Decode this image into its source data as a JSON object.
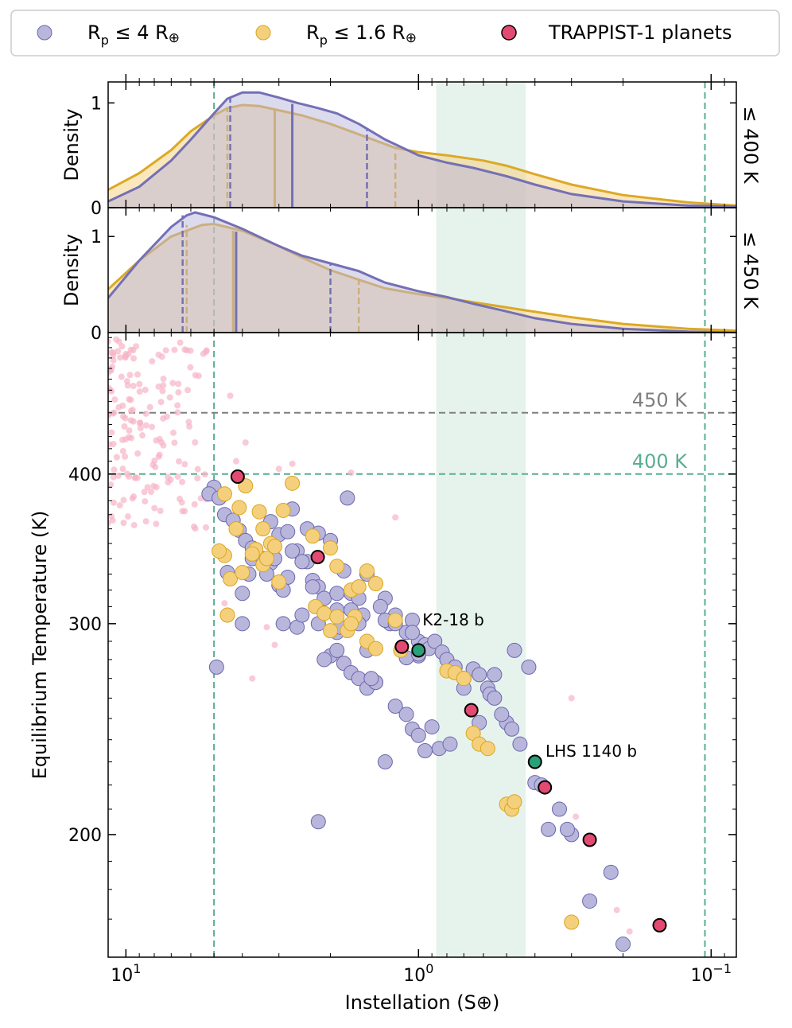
{
  "colors": {
    "small": "#b9b6dc",
    "small_edge": "#6c67ad",
    "small_line": "#7470b4",
    "rocky": "#f5d07c",
    "rocky_edge": "#d9a520",
    "rocky_line": "#dca926",
    "trappist": "#e34a72",
    "green": "#28a07a",
    "field": "#f7b4c6",
    "hz": "#5aae90",
    "gray450": "#7f7f7f",
    "band": "#e6f3ed"
  },
  "legend": {
    "small": {
      "label_main": "R",
      "label_sub": "p",
      "label_rest": " ≤ 4 R",
      "label_oplus": "⊕"
    },
    "rocky": {
      "label_main": "R",
      "label_sub": "p",
      "label_rest": " ≤ 1.6 R",
      "label_oplus": "⊕"
    },
    "trappist": {
      "label": "TRAPPIST-1 planets"
    }
  },
  "chart_data": {
    "type": "scatter",
    "x_scale": "log",
    "x_reversed": true,
    "xlim": [
      11.5,
      0.082
    ],
    "y_scale": "log",
    "ylim": [
      158,
      525
    ],
    "xlabel": "Instellation (S⊕)",
    "ylabel": "Equilibrium Temperature (K)",
    "xticks": [
      {
        "v": 10,
        "label_base": "10",
        "label_exp": "1"
      },
      {
        "v": 1,
        "label_base": "10",
        "label_exp": "0"
      },
      {
        "v": 0.1,
        "label_base": "10",
        "label_exp": "−1"
      }
    ],
    "yticks": [
      {
        "v": 200,
        "label": "200"
      },
      {
        "v": 300,
        "label": "300"
      },
      {
        "v": 400,
        "label": "400"
      }
    ],
    "hz_outer_lines_S": [
      5.0,
      0.105
    ],
    "hz_band_S": [
      0.87,
      0.43
    ],
    "temp_lines": [
      {
        "T": 400,
        "label": "400 K",
        "color": "#5aae90"
      },
      {
        "T": 450,
        "label": "450 K",
        "color": "#7f7f7f"
      }
    ],
    "annotations": [
      {
        "label": "K2-18 b"
      },
      {
        "label": "LHS 1140 b"
      }
    ],
    "density_panels": [
      {
        "label": "≤ 400 K",
        "ylabel": "Density",
        "ylim": [
          0,
          1.2
        ],
        "yticks": [
          0,
          1
        ],
        "small_density": [
          [
            11.5,
            0.06
          ],
          [
            9,
            0.2
          ],
          [
            7,
            0.45
          ],
          [
            6,
            0.65
          ],
          [
            5,
            0.9
          ],
          [
            4.5,
            1.04
          ],
          [
            4,
            1.1
          ],
          [
            3.5,
            1.1
          ],
          [
            3,
            1.05
          ],
          [
            2.6,
            1.0
          ],
          [
            2.2,
            0.95
          ],
          [
            1.9,
            0.9
          ],
          [
            1.6,
            0.8
          ],
          [
            1.3,
            0.65
          ],
          [
            1.0,
            0.5
          ],
          [
            0.8,
            0.43
          ],
          [
            0.65,
            0.38
          ],
          [
            0.5,
            0.3
          ],
          [
            0.4,
            0.22
          ],
          [
            0.3,
            0.13
          ],
          [
            0.2,
            0.06
          ],
          [
            0.12,
            0.02
          ],
          [
            0.082,
            0.01
          ]
        ],
        "small_markers": [
          {
            "S": 4.4,
            "d": 1.06,
            "kind": "q16"
          },
          {
            "S": 2.7,
            "d": 0.99,
            "kind": "median"
          },
          {
            "S": 1.5,
            "d": 0.74,
            "kind": "q84"
          }
        ],
        "rocky_density": [
          [
            11.5,
            0.17
          ],
          [
            9,
            0.33
          ],
          [
            7,
            0.55
          ],
          [
            6,
            0.73
          ],
          [
            5,
            0.88
          ],
          [
            4.5,
            0.95
          ],
          [
            4,
            0.98
          ],
          [
            3.5,
            0.97
          ],
          [
            3,
            0.93
          ],
          [
            2.5,
            0.88
          ],
          [
            2.0,
            0.8
          ],
          [
            1.6,
            0.7
          ],
          [
            1.2,
            0.57
          ],
          [
            1.0,
            0.53
          ],
          [
            0.8,
            0.5
          ],
          [
            0.6,
            0.45
          ],
          [
            0.5,
            0.4
          ],
          [
            0.4,
            0.32
          ],
          [
            0.3,
            0.22
          ],
          [
            0.2,
            0.12
          ],
          [
            0.12,
            0.05
          ],
          [
            0.082,
            0.02
          ]
        ],
        "rocky_markers": [
          {
            "S": 4.5,
            "d": 0.96,
            "kind": "q16"
          },
          {
            "S": 3.1,
            "d": 0.93,
            "kind": "median"
          },
          {
            "S": 1.2,
            "d": 0.55,
            "kind": "q84"
          }
        ]
      },
      {
        "label": "≤ 450 K",
        "ylabel": "Density",
        "ylim": [
          0,
          1.3
        ],
        "yticks": [
          0,
          1
        ],
        "small_density": [
          [
            11.5,
            0.36
          ],
          [
            9,
            0.75
          ],
          [
            7,
            1.1
          ],
          [
            6.2,
            1.22
          ],
          [
            5.8,
            1.25
          ],
          [
            5,
            1.2
          ],
          [
            4,
            1.08
          ],
          [
            3,
            0.9
          ],
          [
            2.5,
            0.8
          ],
          [
            2,
            0.72
          ],
          [
            1.6,
            0.64
          ],
          [
            1.3,
            0.52
          ],
          [
            1.0,
            0.43
          ],
          [
            0.8,
            0.37
          ],
          [
            0.65,
            0.3
          ],
          [
            0.5,
            0.22
          ],
          [
            0.4,
            0.15
          ],
          [
            0.3,
            0.09
          ],
          [
            0.2,
            0.04
          ],
          [
            0.12,
            0.01
          ],
          [
            0.082,
            0.0
          ]
        ],
        "small_markers": [
          {
            "S": 6.4,
            "d": 1.22,
            "kind": "q16"
          },
          {
            "S": 4.2,
            "d": 1.05,
            "kind": "median"
          },
          {
            "S": 2.0,
            "d": 0.71,
            "kind": "q84"
          }
        ],
        "rocky_density": [
          [
            11.5,
            0.45
          ],
          [
            9,
            0.75
          ],
          [
            7,
            1.0
          ],
          [
            5.5,
            1.12
          ],
          [
            5,
            1.13
          ],
          [
            4,
            1.06
          ],
          [
            3,
            0.9
          ],
          [
            2.5,
            0.78
          ],
          [
            2,
            0.65
          ],
          [
            1.6,
            0.55
          ],
          [
            1.3,
            0.46
          ],
          [
            1.0,
            0.4
          ],
          [
            0.8,
            0.36
          ],
          [
            0.6,
            0.3
          ],
          [
            0.45,
            0.24
          ],
          [
            0.3,
            0.16
          ],
          [
            0.2,
            0.09
          ],
          [
            0.12,
            0.04
          ],
          [
            0.082,
            0.02
          ]
        ],
        "rocky_markers": [
          {
            "S": 6.2,
            "d": 1.12,
            "kind": "q16"
          },
          {
            "S": 4.3,
            "d": 1.06,
            "kind": "median"
          },
          {
            "S": 1.6,
            "d": 0.55,
            "kind": "q84"
          }
        ]
      }
    ],
    "series": [
      {
        "name": "Rp ≤ 4 R⊕",
        "key": "small",
        "points": [
          [
            3.2,
            365
          ],
          [
            3.0,
            356
          ],
          [
            4.5,
            331
          ],
          [
            3.2,
            337
          ],
          [
            3.6,
            346
          ],
          [
            3.8,
            330
          ],
          [
            2.8,
            358
          ],
          [
            2.6,
            345
          ],
          [
            2.4,
            338
          ],
          [
            2.0,
            352
          ],
          [
            1.8,
            332
          ],
          [
            1.7,
            318
          ],
          [
            2.3,
            326
          ],
          [
            2.2,
            322
          ],
          [
            2.1,
            315
          ],
          [
            1.9,
            308
          ],
          [
            1.5,
            330
          ],
          [
            1.6,
            315
          ],
          [
            1.3,
            315
          ],
          [
            1.25,
            300
          ],
          [
            1.2,
            305
          ],
          [
            1.1,
            295
          ],
          [
            1.0,
            290
          ],
          [
            1.0,
            282
          ],
          [
            1.75,
            382
          ],
          [
            4.0,
            318
          ],
          [
            2.4,
            360
          ],
          [
            2.7,
            374
          ],
          [
            3.7,
            340
          ],
          [
            3.1,
            340
          ],
          [
            2.8,
            328
          ],
          [
            2.3,
            322
          ],
          [
            1.9,
            318
          ],
          [
            1.9,
            295
          ],
          [
            1.85,
            298
          ],
          [
            1.7,
            308
          ],
          [
            1.55,
            305
          ],
          [
            1.35,
            310
          ],
          [
            1.3,
            302
          ],
          [
            1.2,
            300
          ],
          [
            1.05,
            302
          ],
          [
            1.05,
            295
          ],
          [
            0.95,
            288
          ],
          [
            0.92,
            286
          ],
          [
            0.88,
            290
          ],
          [
            0.83,
            284
          ],
          [
            0.8,
            280
          ],
          [
            0.75,
            276
          ],
          [
            0.7,
            270
          ],
          [
            0.65,
            275
          ],
          [
            0.62,
            272
          ],
          [
            0.58,
            265
          ],
          [
            0.57,
            262
          ],
          [
            0.55,
            260
          ],
          [
            0.5,
            248
          ],
          [
            0.52,
            252
          ],
          [
            0.48,
            245
          ],
          [
            0.45,
            238
          ],
          [
            0.4,
            221
          ],
          [
            0.38,
            220
          ],
          [
            0.36,
            202
          ],
          [
            0.33,
            210
          ],
          [
            0.3,
            200
          ],
          [
            0.22,
            186
          ],
          [
            0.26,
            176
          ],
          [
            0.2,
            162
          ],
          [
            5.0,
            390
          ],
          [
            5.2,
            385
          ],
          [
            4.8,
            382
          ],
          [
            4.6,
            370
          ],
          [
            4.3,
            366
          ],
          [
            4.1,
            359
          ],
          [
            3.9,
            352
          ],
          [
            3.7,
            347
          ],
          [
            3.4,
            340
          ],
          [
            3.0,
            323
          ],
          [
            2.9,
            300
          ],
          [
            2.6,
            298
          ],
          [
            2.5,
            305
          ],
          [
            2.2,
            300
          ],
          [
            2.0,
            282
          ],
          [
            2.1,
            280
          ],
          [
            1.8,
            278
          ],
          [
            1.7,
            273
          ],
          [
            1.6,
            270
          ],
          [
            1.5,
            265
          ],
          [
            1.4,
            268
          ],
          [
            1.2,
            256
          ],
          [
            1.1,
            252
          ],
          [
            1.05,
            245
          ],
          [
            1.0,
            242
          ],
          [
            0.9,
            246
          ],
          [
            0.85,
            236
          ],
          [
            0.78,
            238
          ],
          [
            0.7,
            265
          ],
          [
            0.62,
            248
          ],
          [
            0.55,
            272
          ],
          [
            2.2,
            205
          ],
          [
            4.9,
            276
          ],
          [
            4.0,
            300
          ],
          [
            2.9,
            320
          ],
          [
            2.5,
            338
          ],
          [
            2.2,
            357
          ],
          [
            1.5,
            285
          ],
          [
            1.4,
            268
          ],
          [
            1.3,
            230
          ],
          [
            1.1,
            281
          ],
          [
            1.0,
            283
          ],
          [
            0.47,
            285
          ],
          [
            0.42,
            276
          ],
          [
            0.31,
            202
          ],
          [
            2.7,
            345
          ],
          [
            3.3,
            330
          ],
          [
            1.6,
            300
          ],
          [
            1.9,
            285
          ],
          [
            1.45,
            270
          ],
          [
            0.95,
            235
          ]
        ]
      },
      {
        "name": "Rp ≤ 1.6 R⊕",
        "key": "rocky",
        "points": [
          [
            4.6,
            385
          ],
          [
            4.1,
            375
          ],
          [
            3.4,
            360
          ],
          [
            3.2,
            350
          ],
          [
            3.6,
            346
          ],
          [
            3.1,
            348
          ],
          [
            3.4,
            336
          ],
          [
            4.6,
            342
          ],
          [
            4.4,
            327
          ],
          [
            2.3,
            355
          ],
          [
            2.0,
            347
          ],
          [
            1.9,
            335
          ],
          [
            2.25,
            310
          ],
          [
            2.1,
            306
          ],
          [
            1.9,
            304
          ],
          [
            1.75,
            296
          ],
          [
            1.65,
            304
          ],
          [
            1.5,
            290
          ],
          [
            1.4,
            286
          ],
          [
            1.15,
            285
          ],
          [
            0.8,
            274
          ],
          [
            0.75,
            273
          ],
          [
            0.7,
            270
          ],
          [
            0.65,
            243
          ],
          [
            0.62,
            238
          ],
          [
            0.58,
            236
          ],
          [
            0.5,
            212
          ],
          [
            0.48,
            210
          ],
          [
            0.3,
            169
          ],
          [
            3.3,
            340
          ],
          [
            3.7,
            343
          ],
          [
            3.0,
            325
          ],
          [
            1.7,
            320
          ],
          [
            1.6,
            322
          ],
          [
            1.4,
            324
          ],
          [
            1.5,
            332
          ],
          [
            1.2,
            302
          ],
          [
            4.5,
            305
          ],
          [
            4.8,
            345
          ],
          [
            4.2,
            360
          ],
          [
            2.9,
            373
          ],
          [
            2.7,
            393
          ],
          [
            3.9,
            391
          ],
          [
            3.5,
            372
          ],
          [
            4.0,
            331
          ],
          [
            2.0,
            296
          ],
          [
            1.7,
            300
          ],
          [
            0.47,
            213
          ]
        ]
      },
      {
        "name": "TRAPPIST-1 planets",
        "key": "trappist",
        "points": [
          [
            4.15,
            398
          ],
          [
            2.21,
            341
          ],
          [
            0.66,
            254
          ],
          [
            0.37,
            219
          ],
          [
            0.26,
            198
          ],
          [
            0.15,
            168
          ],
          [
            1.14,
            287
          ]
        ]
      },
      {
        "name": "highlighted",
        "key": "green",
        "points": [
          [
            1.0,
            285
          ],
          [
            0.4,
            230
          ]
        ]
      }
    ],
    "annotation_points": [
      {
        "label": "K2-18 b",
        "S": 1.0,
        "T": 300
      },
      {
        "label": "LHS 1140 b",
        "S": 0.38,
        "T": 233
      }
    ]
  }
}
